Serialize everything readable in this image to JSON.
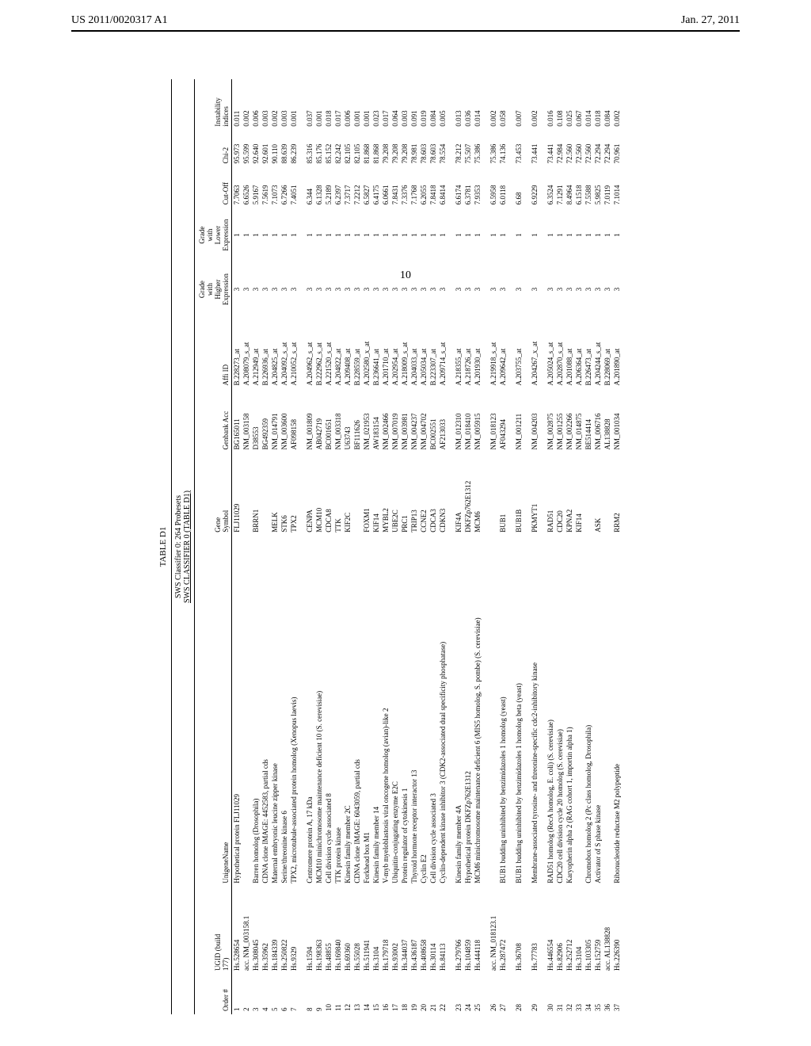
{
  "header": {
    "left": "US 2011/0020317 A1",
    "right": "Jan. 27, 2011"
  },
  "page_number": "10",
  "table": {
    "title": "TABLE D1",
    "probesets": "SWS Classifier 0: 264 Probesets",
    "subtitle": "SWS CLASSIFIER 0 (TABLE D1)",
    "columns": [
      "Order #",
      "UGID (build 177)",
      "UnigeneName",
      "Gene Symbol",
      "Genbank Acc",
      "Affi ID",
      "Grade with Higher Expression",
      "Grade with Lower Expression",
      "Cut-Off",
      "Chi-2",
      "Instability indices"
    ],
    "groups": [
      {
        "rows": [
          {
            "order": "1",
            "ugid": "Hs.528654",
            "name": "Hypothetical protein FLJ11029",
            "symbol": "FLJ11029",
            "genbank": "BG165011",
            "affi": "B.228273_at",
            "high": "3",
            "low": "1",
            "cut": "7.7063",
            "chi": "95.973",
            "inst": "0.011"
          },
          {
            "order": "2",
            "ugid": "acc. NM_003158.1",
            "name": "",
            "symbol": "",
            "genbank": "NM_003158",
            "affi": "A.208079_s_at",
            "high": "3",
            "low": "1",
            "cut": "6.6526",
            "chi": "95.599",
            "inst": "0.002"
          },
          {
            "order": "3",
            "ugid": "Hs.308045",
            "name": "Barren homolog (Drosophila)",
            "symbol": "BRRN1",
            "genbank": "D38553",
            "affi": "A.212949_at",
            "high": "3",
            "low": "1",
            "cut": "5.9167",
            "chi": "92.640",
            "inst": "0.006"
          },
          {
            "order": "4",
            "ugid": "Hs.35962",
            "name": "CDNA clone IMAGE: 4452583, partial cds",
            "symbol": "",
            "genbank": "BG492359",
            "affi": "B.226936_at",
            "high": "3",
            "low": "1",
            "cut": "7.5619",
            "chi": "92.601",
            "inst": "0.003"
          },
          {
            "order": "5",
            "ugid": "Hs.184339",
            "name": "Maternal embryonic leucine zipper kinase",
            "symbol": "MELK",
            "genbank": "NM_014791",
            "affi": "A.204825_at",
            "high": "3",
            "low": "1",
            "cut": "7.1073",
            "chi": "90.110",
            "inst": "0.002"
          },
          {
            "order": "6",
            "ugid": "Hs.250822",
            "name": "Serine/threonine kinase 6",
            "symbol": "STK6",
            "genbank": "NM_003600",
            "affi": "A.204092_s_at",
            "high": "3",
            "low": "1",
            "cut": "6.7266",
            "chi": "88.639",
            "inst": "0.003"
          },
          {
            "order": "7",
            "ugid": "Hs.9329",
            "name": "TPX2, microtubule-associated protein homolog (Xenopus laevis)",
            "symbol": "TPX2",
            "genbank": "AF098158",
            "affi": "A.210052_s_at",
            "high": "3",
            "low": "1",
            "cut": "7.4051",
            "chi": "86.239",
            "inst": "0.001"
          }
        ]
      },
      {
        "rows": [
          {
            "order": "8",
            "ugid": "Hs.1594",
            "name": "Centromere protein A, 17 kDa",
            "symbol": "CENPA",
            "genbank": "NM_001809",
            "affi": "A.204962_s_at",
            "high": "3",
            "low": "1",
            "cut": "6.344",
            "chi": "85.316",
            "inst": "0.037"
          },
          {
            "order": "9",
            "ugid": "Hs.198363",
            "name": "MCM10 minichromosome maintenance deficient 10 (S. cerevisiae)",
            "symbol": "MCM10",
            "genbank": "AB042719",
            "affi": "B.222962_s_at",
            "high": "3",
            "low": "1",
            "cut": "6.1328",
            "chi": "85.176",
            "inst": "0.001"
          },
          {
            "order": "10",
            "ugid": "Hs.48855",
            "name": "Cell division cycle associated 8",
            "symbol": "CDCA8",
            "genbank": "BC001651",
            "affi": "A.221520_s_at",
            "high": "3",
            "low": "1",
            "cut": "5.2189",
            "chi": "85.152",
            "inst": "0.018"
          },
          {
            "order": "11",
            "ugid": "Hs.169840",
            "name": "TTK protein kinase",
            "symbol": "TTK",
            "genbank": "NM_003318",
            "affi": "A.204822_at",
            "high": "3",
            "low": "1",
            "cut": "6.2397",
            "chi": "82.242",
            "inst": "0.017"
          },
          {
            "order": "12",
            "ugid": "Hs.69360",
            "name": "Kinesin family member 2C",
            "symbol": "KIF2C",
            "genbank": "U63743",
            "affi": "A.209408_at",
            "high": "3",
            "low": "1",
            "cut": "7.3717",
            "chi": "82.105",
            "inst": "0.006"
          },
          {
            "order": "13",
            "ugid": "Hs.55028",
            "name": "CDNA clone IMAGE: 6043059, partial cds",
            "symbol": "",
            "genbank": "BF111626",
            "affi": "B.228559_at",
            "high": "3",
            "low": "1",
            "cut": "7.2212",
            "chi": "82.105",
            "inst": "0.001"
          },
          {
            "order": "14",
            "ugid": "Hs.511941",
            "name": "Forkhead box M1",
            "symbol": "FOXM1",
            "genbank": "NM_021953",
            "affi": "A.202580_x_at",
            "high": "3",
            "low": "1",
            "cut": "6.5827",
            "chi": "81.868",
            "inst": "0.001"
          },
          {
            "order": "15",
            "ugid": "Hs.3104",
            "name": "Kinesin family member 14",
            "symbol": "KIF14",
            "genbank": "AW183154",
            "affi": "B.236641_at",
            "high": "3",
            "low": "1",
            "cut": "6.4175",
            "chi": "81.868",
            "inst": "0.023"
          },
          {
            "order": "16",
            "ugid": "Hs.179718",
            "name": "V-myb myeloblastosis viral oncogene homolog (avian)-like 2",
            "symbol": "MYBL2",
            "genbank": "NM_002466",
            "affi": "A.201710_at",
            "high": "3",
            "low": "1",
            "cut": "6.0661",
            "chi": "79.208",
            "inst": "0.017"
          },
          {
            "order": "17",
            "ugid": "Hs.93002",
            "name": "Ubiquitin-conjugating enzyme E2C",
            "symbol": "UBE2C",
            "genbank": "NM_007019",
            "affi": "A.202954_at",
            "high": "3",
            "low": "1",
            "cut": "7.8431",
            "chi": "79.208",
            "inst": "0.064"
          },
          {
            "order": "18",
            "ugid": "Hs.344037",
            "name": "Protein regulator of cytokinesis 1",
            "symbol": "PRC1",
            "genbank": "NM_003981",
            "affi": "A.218009_s_at",
            "high": "3",
            "low": "1",
            "cut": "7.3376",
            "chi": "79.208",
            "inst": "0.003"
          },
          {
            "order": "19",
            "ugid": "Hs.436187",
            "name": "Thyroid hormone receptor interactor 13",
            "symbol": "TRIP13",
            "genbank": "NM_004237",
            "affi": "A.204033_at",
            "high": "3",
            "low": "1",
            "cut": "7.1768",
            "chi": "78.981",
            "inst": "0.091"
          },
          {
            "order": "20",
            "ugid": "Hs.408658",
            "name": "Cyclin E2",
            "symbol": "CCNE2",
            "genbank": "NM_004702",
            "affi": "A.205034_at",
            "high": "3",
            "low": "1",
            "cut": "6.2055",
            "chi": "78.603",
            "inst": "0.019"
          },
          {
            "order": "21",
            "ugid": "Hs.30114",
            "name": "Cell division cycle associated 3",
            "symbol": "CDCA3",
            "genbank": "BC002551",
            "affi": "B.223307_at",
            "high": "3",
            "low": "1",
            "cut": "7.8418",
            "chi": "78.603",
            "inst": "0.084"
          },
          {
            "order": "22",
            "ugid": "Hs.84113",
            "name": "Cyclin-dependent kinase inhibitor 3 (CDK2-associated dual specificity phosphatase)",
            "symbol": "CDKN3",
            "genbank": "AF213033",
            "affi": "A.209714_s_at",
            "high": "3",
            "low": "1",
            "cut": "6.8414",
            "chi": "78.554",
            "inst": "0.005"
          }
        ]
      },
      {
        "rows": [
          {
            "order": "23",
            "ugid": "Hs.279766",
            "name": "Kinesin family member 4A",
            "symbol": "KIF4A",
            "genbank": "NM_012310",
            "affi": "A.218355_at",
            "high": "3",
            "low": "1",
            "cut": "6.6174",
            "chi": "78.212",
            "inst": "0.013"
          },
          {
            "order": "24",
            "ugid": "Hs.104859",
            "name": "Hypothetical protein DKFZp762E1312",
            "symbol": "DKFZp762E1312",
            "genbank": "NM_018410",
            "affi": "A.218726_at",
            "high": "3",
            "low": "1",
            "cut": "6.3781",
            "chi": "75.507",
            "inst": "0.036"
          },
          {
            "order": "25",
            "ugid": "Hs.444118",
            "name": "MCM6 minichromosome maintenance deficient 6 (MIS5 homolog, S. pombe) (S. cerevisiae)",
            "symbol": "MCM6",
            "genbank": "NM_005915",
            "affi": "A.201930_at",
            "high": "3",
            "low": "1",
            "cut": "7.9353",
            "chi": "75.386",
            "inst": "0.014"
          }
        ]
      },
      {
        "rows": [
          {
            "order": "26",
            "ugid": "acc. NM_018123.1",
            "name": "",
            "symbol": "",
            "genbank": "NM_018123",
            "affi": "A.219918_s_at",
            "high": "3",
            "low": "1",
            "cut": "6.5958",
            "chi": "75.386",
            "inst": "0.002"
          },
          {
            "order": "27",
            "ugid": "Hs.287472",
            "name": "BUB1 budding uninhibited by benzimidazoles 1 homolog (yeast)",
            "symbol": "BUB1",
            "genbank": "AF043294",
            "affi": "A.209642_at",
            "high": "3",
            "low": "1",
            "cut": "6.0118",
            "chi": "74.136",
            "inst": "0.058"
          }
        ]
      },
      {
        "rows": [
          {
            "order": "28",
            "ugid": "Hs.36708",
            "name": "BUB1 budding uninhibited by benzimidazoles 1 homolog beta (yeast)",
            "symbol": "BUB1B",
            "genbank": "NM_001211",
            "affi": "A.203755_at",
            "high": "3",
            "low": "1",
            "cut": "6.68",
            "chi": "73.453",
            "inst": "0.007"
          }
        ]
      },
      {
        "rows": [
          {
            "order": "29",
            "ugid": "Hs.77783",
            "name": "Membrane-associated tyrosine- and threonine-specific cdc2-inhibitory kinase",
            "symbol": "PKMYT1",
            "genbank": "NM_004203",
            "affi": "A.204267_x_at",
            "high": "3",
            "low": "1",
            "cut": "6.9229",
            "chi": "73.441",
            "inst": "0.002"
          }
        ]
      },
      {
        "rows": [
          {
            "order": "30",
            "ugid": "Hs.446554",
            "name": "RAD51 homolog (RecA homolog, E. coli) (S. cerevisiae)",
            "symbol": "RAD51",
            "genbank": "NM_002875",
            "affi": "A.205024_s_at",
            "high": "3",
            "low": "1",
            "cut": "6.3524",
            "chi": "73.441",
            "inst": "0.016"
          },
          {
            "order": "31",
            "ugid": "Hs.82906",
            "name": "CDC20 cell division cycle 20 homolog (S. cerevisiae)",
            "symbol": "CDC20",
            "genbank": "NM_001255",
            "affi": "A.202870_s_at",
            "high": "3",
            "low": "1",
            "cut": "7.1291",
            "chi": "72.984",
            "inst": "0.108"
          },
          {
            "order": "32",
            "ugid": "Hs.252712",
            "name": "Karyopherin alpha 2 (RAG cohort 1, importin alpha 1)",
            "symbol": "KPNA2",
            "genbank": "NM_002266",
            "affi": "A.201088_at",
            "high": "3",
            "low": "1",
            "cut": "8.4964",
            "chi": "72.560",
            "inst": "0.025"
          },
          {
            "order": "33",
            "ugid": "Hs.3104",
            "name": "",
            "symbol": "KIF14",
            "genbank": "NM_014875",
            "affi": "A.206364_at",
            "high": "3",
            "low": "1",
            "cut": "6.1518",
            "chi": "72.560",
            "inst": "0.067"
          },
          {
            "order": "34",
            "ugid": "Hs.103305",
            "name": "Chromobox homolog 2 (Pc class homolog, Drosophila)",
            "symbol": "",
            "genbank": "BE514414",
            "affi": "B.226473_at",
            "high": "3",
            "low": "1",
            "cut": "7.5588",
            "chi": "72.560",
            "inst": "0.014"
          },
          {
            "order": "35",
            "ugid": "Hs.152759",
            "name": "Activator of S phase kinase",
            "symbol": "ASK",
            "genbank": "NM_006716",
            "affi": "A.204244_s_at",
            "high": "3",
            "low": "1",
            "cut": "5.9825",
            "chi": "72.294",
            "inst": "0.018"
          },
          {
            "order": "36",
            "ugid": "acc. AL138828",
            "name": "",
            "symbol": "",
            "genbank": "AL138828",
            "affi": "B.228069_at",
            "high": "3",
            "low": "1",
            "cut": "7.0119",
            "chi": "72.294",
            "inst": "0.084"
          },
          {
            "order": "37",
            "ugid": "Hs.226390",
            "name": "Ribonucleotide reductase M2 polypeptide",
            "symbol": "RRM2",
            "genbank": "NM_001034",
            "affi": "A.201890_at",
            "high": "3",
            "low": "1",
            "cut": "7.1014",
            "chi": "70.961",
            "inst": "0.002"
          }
        ]
      }
    ]
  }
}
